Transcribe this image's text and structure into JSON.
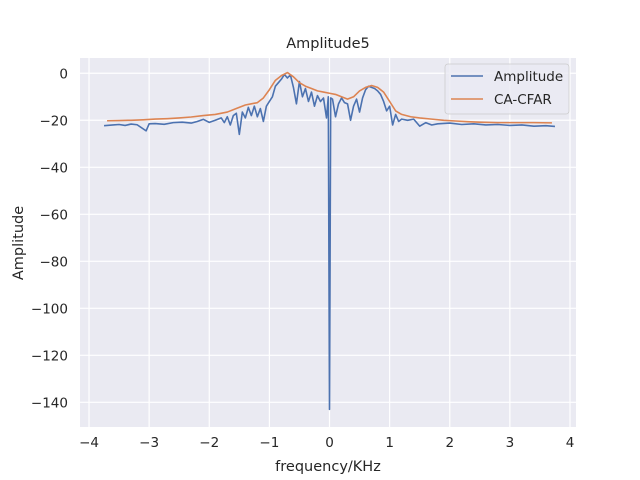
{
  "chart_data": {
    "type": "line",
    "title": "Amplitude5",
    "xlabel": "frequency/KHz",
    "ylabel": "Amplitude",
    "xlim": [
      -4.15,
      4.1
    ],
    "ylim": [
      -150.5,
      6.5
    ],
    "xticks": [
      -4,
      -3,
      -2,
      -1,
      0,
      1,
      2,
      3,
      4
    ],
    "xtick_labels": [
      "−4",
      "−3",
      "−2",
      "−1",
      "0",
      "1",
      "2",
      "3",
      "4"
    ],
    "yticks": [
      0,
      -20,
      -40,
      -60,
      -80,
      -100,
      -120,
      -140
    ],
    "ytick_labels": [
      "0",
      "−20",
      "−40",
      "−60",
      "−80",
      "−100",
      "−120",
      "−140"
    ],
    "grid": true,
    "legend_position": "top-right",
    "series": [
      {
        "name": "Amplitude",
        "color": "#4c72b0",
        "points": [
          [
            -3.75,
            -22.3
          ],
          [
            -3.6,
            -22.0
          ],
          [
            -3.5,
            -21.8
          ],
          [
            -3.4,
            -22.2
          ],
          [
            -3.3,
            -21.6
          ],
          [
            -3.2,
            -21.9
          ],
          [
            -3.05,
            -24.5
          ],
          [
            -3.0,
            -21.5
          ],
          [
            -2.9,
            -21.4
          ],
          [
            -2.75,
            -21.7
          ],
          [
            -2.6,
            -21.0
          ],
          [
            -2.45,
            -20.8
          ],
          [
            -2.3,
            -21.2
          ],
          [
            -2.2,
            -20.5
          ],
          [
            -2.1,
            -19.6
          ],
          [
            -2.0,
            -20.9
          ],
          [
            -1.9,
            -20.0
          ],
          [
            -1.8,
            -19.0
          ],
          [
            -1.75,
            -21.0
          ],
          [
            -1.7,
            -18.5
          ],
          [
            -1.65,
            -22.0
          ],
          [
            -1.6,
            -18.0
          ],
          [
            -1.55,
            -17.0
          ],
          [
            -1.5,
            -26.0
          ],
          [
            -1.45,
            -16.5
          ],
          [
            -1.4,
            -19.0
          ],
          [
            -1.35,
            -14.5
          ],
          [
            -1.3,
            -18.0
          ],
          [
            -1.25,
            -14.0
          ],
          [
            -1.2,
            -18.5
          ],
          [
            -1.15,
            -15.0
          ],
          [
            -1.1,
            -20.5
          ],
          [
            -1.05,
            -14.0
          ],
          [
            -1.0,
            -12.0
          ],
          [
            -0.95,
            -10.0
          ],
          [
            -0.9,
            -5.5
          ],
          [
            -0.85,
            -4.0
          ],
          [
            -0.8,
            -2.5
          ],
          [
            -0.75,
            -0.5
          ],
          [
            -0.7,
            -2.0
          ],
          [
            -0.65,
            -0.7
          ],
          [
            -0.6,
            -6.0
          ],
          [
            -0.55,
            -13.0
          ],
          [
            -0.5,
            -3.5
          ],
          [
            -0.45,
            -10.0
          ],
          [
            -0.4,
            -6.5
          ],
          [
            -0.35,
            -12.0
          ],
          [
            -0.3,
            -8.0
          ],
          [
            -0.25,
            -14.0
          ],
          [
            -0.2,
            -9.5
          ],
          [
            -0.15,
            -12.0
          ],
          [
            -0.1,
            -10.5
          ],
          [
            -0.05,
            -19.0
          ],
          [
            -0.02,
            -10.0
          ],
          [
            0.0,
            -143.0
          ],
          [
            0.02,
            -10.5
          ],
          [
            0.05,
            -11.0
          ],
          [
            0.1,
            -18.5
          ],
          [
            0.15,
            -13.0
          ],
          [
            0.2,
            -10.5
          ],
          [
            0.25,
            -12.5
          ],
          [
            0.3,
            -13.0
          ],
          [
            0.35,
            -20.0
          ],
          [
            0.4,
            -14.0
          ],
          [
            0.45,
            -11.0
          ],
          [
            0.5,
            -16.5
          ],
          [
            0.55,
            -10.5
          ],
          [
            0.6,
            -7.0
          ],
          [
            0.65,
            -5.5
          ],
          [
            0.7,
            -6.0
          ],
          [
            0.75,
            -6.5
          ],
          [
            0.8,
            -7.5
          ],
          [
            0.85,
            -9.0
          ],
          [
            0.9,
            -12.0
          ],
          [
            0.95,
            -16.0
          ],
          [
            1.0,
            -14.0
          ],
          [
            1.05,
            -22.0
          ],
          [
            1.1,
            -17.5
          ],
          [
            1.15,
            -20.5
          ],
          [
            1.2,
            -19.5
          ],
          [
            1.3,
            -20.0
          ],
          [
            1.4,
            -19.5
          ],
          [
            1.5,
            -22.5
          ],
          [
            1.6,
            -21.0
          ],
          [
            1.7,
            -22.0
          ],
          [
            1.8,
            -21.5
          ],
          [
            2.0,
            -21.2
          ],
          [
            2.2,
            -21.8
          ],
          [
            2.4,
            -21.5
          ],
          [
            2.6,
            -22.0
          ],
          [
            2.8,
            -21.8
          ],
          [
            3.0,
            -22.2
          ],
          [
            3.2,
            -22.0
          ],
          [
            3.4,
            -22.5
          ],
          [
            3.6,
            -22.3
          ],
          [
            3.75,
            -22.6
          ]
        ]
      },
      {
        "name": "CA-CFAR",
        "color": "#dd8452",
        "points": [
          [
            -3.7,
            -20.2
          ],
          [
            -3.5,
            -20.1
          ],
          [
            -3.3,
            -20.0
          ],
          [
            -3.1,
            -19.8
          ],
          [
            -2.9,
            -19.5
          ],
          [
            -2.7,
            -19.3
          ],
          [
            -2.5,
            -19.0
          ],
          [
            -2.3,
            -18.6
          ],
          [
            -2.1,
            -18.0
          ],
          [
            -1.9,
            -17.5
          ],
          [
            -1.7,
            -16.5
          ],
          [
            -1.55,
            -15.0
          ],
          [
            -1.4,
            -13.5
          ],
          [
            -1.3,
            -13.0
          ],
          [
            -1.2,
            -12.5
          ],
          [
            -1.1,
            -10.5
          ],
          [
            -1.0,
            -7.0
          ],
          [
            -0.9,
            -3.0
          ],
          [
            -0.8,
            -1.0
          ],
          [
            -0.7,
            0.3
          ],
          [
            -0.6,
            -1.5
          ],
          [
            -0.5,
            -4.0
          ],
          [
            -0.4,
            -5.5
          ],
          [
            -0.3,
            -6.5
          ],
          [
            -0.2,
            -7.5
          ],
          [
            -0.1,
            -8.0
          ],
          [
            0.0,
            -8.5
          ],
          [
            0.1,
            -9.0
          ],
          [
            0.2,
            -10.0
          ],
          [
            0.3,
            -11.0
          ],
          [
            0.4,
            -10.0
          ],
          [
            0.5,
            -7.5
          ],
          [
            0.6,
            -6.0
          ],
          [
            0.7,
            -5.2
          ],
          [
            0.8,
            -6.0
          ],
          [
            0.9,
            -8.0
          ],
          [
            1.0,
            -12.0
          ],
          [
            1.1,
            -16.0
          ],
          [
            1.2,
            -17.5
          ],
          [
            1.35,
            -18.5
          ],
          [
            1.5,
            -19.0
          ],
          [
            1.7,
            -19.5
          ],
          [
            1.9,
            -20.0
          ],
          [
            2.1,
            -20.3
          ],
          [
            2.3,
            -20.6
          ],
          [
            2.5,
            -20.8
          ],
          [
            2.8,
            -21.0
          ],
          [
            3.1,
            -21.0
          ],
          [
            3.4,
            -21.0
          ],
          [
            3.7,
            -21.1
          ]
        ]
      }
    ]
  }
}
